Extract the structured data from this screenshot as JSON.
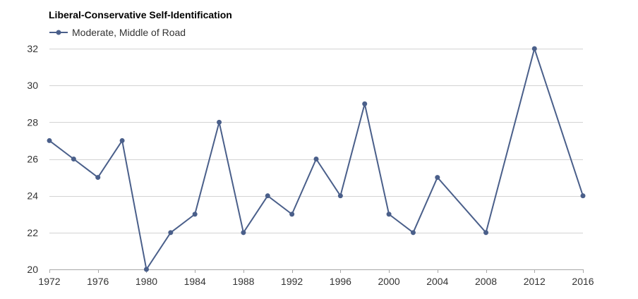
{
  "chart_data": {
    "type": "line",
    "title": "Liberal-Conservative Self-Identification",
    "xlabel": "",
    "ylabel": "",
    "x": [
      1972,
      1974,
      1976,
      1978,
      1980,
      1982,
      1984,
      1986,
      1988,
      1990,
      1992,
      1994,
      1996,
      1998,
      2000,
      2002,
      2004,
      2008,
      2012,
      2016
    ],
    "series": [
      {
        "name": "Moderate, Middle of Road",
        "color": "#4a5f8a",
        "values": [
          27,
          26,
          25,
          27,
          20,
          22,
          23,
          28,
          22,
          24,
          23,
          26,
          24,
          29,
          23,
          22,
          25,
          22,
          32,
          24
        ]
      }
    ],
    "xlim": [
      1972,
      2016
    ],
    "ylim": [
      20,
      32
    ],
    "x_ticks": [
      1972,
      1976,
      1980,
      1984,
      1988,
      1992,
      1996,
      2000,
      2004,
      2008,
      2012,
      2016
    ],
    "y_ticks": [
      20,
      22,
      24,
      26,
      28,
      30,
      32
    ],
    "grid": "horizontal",
    "legend_position": "top-left",
    "marker": "circle"
  }
}
